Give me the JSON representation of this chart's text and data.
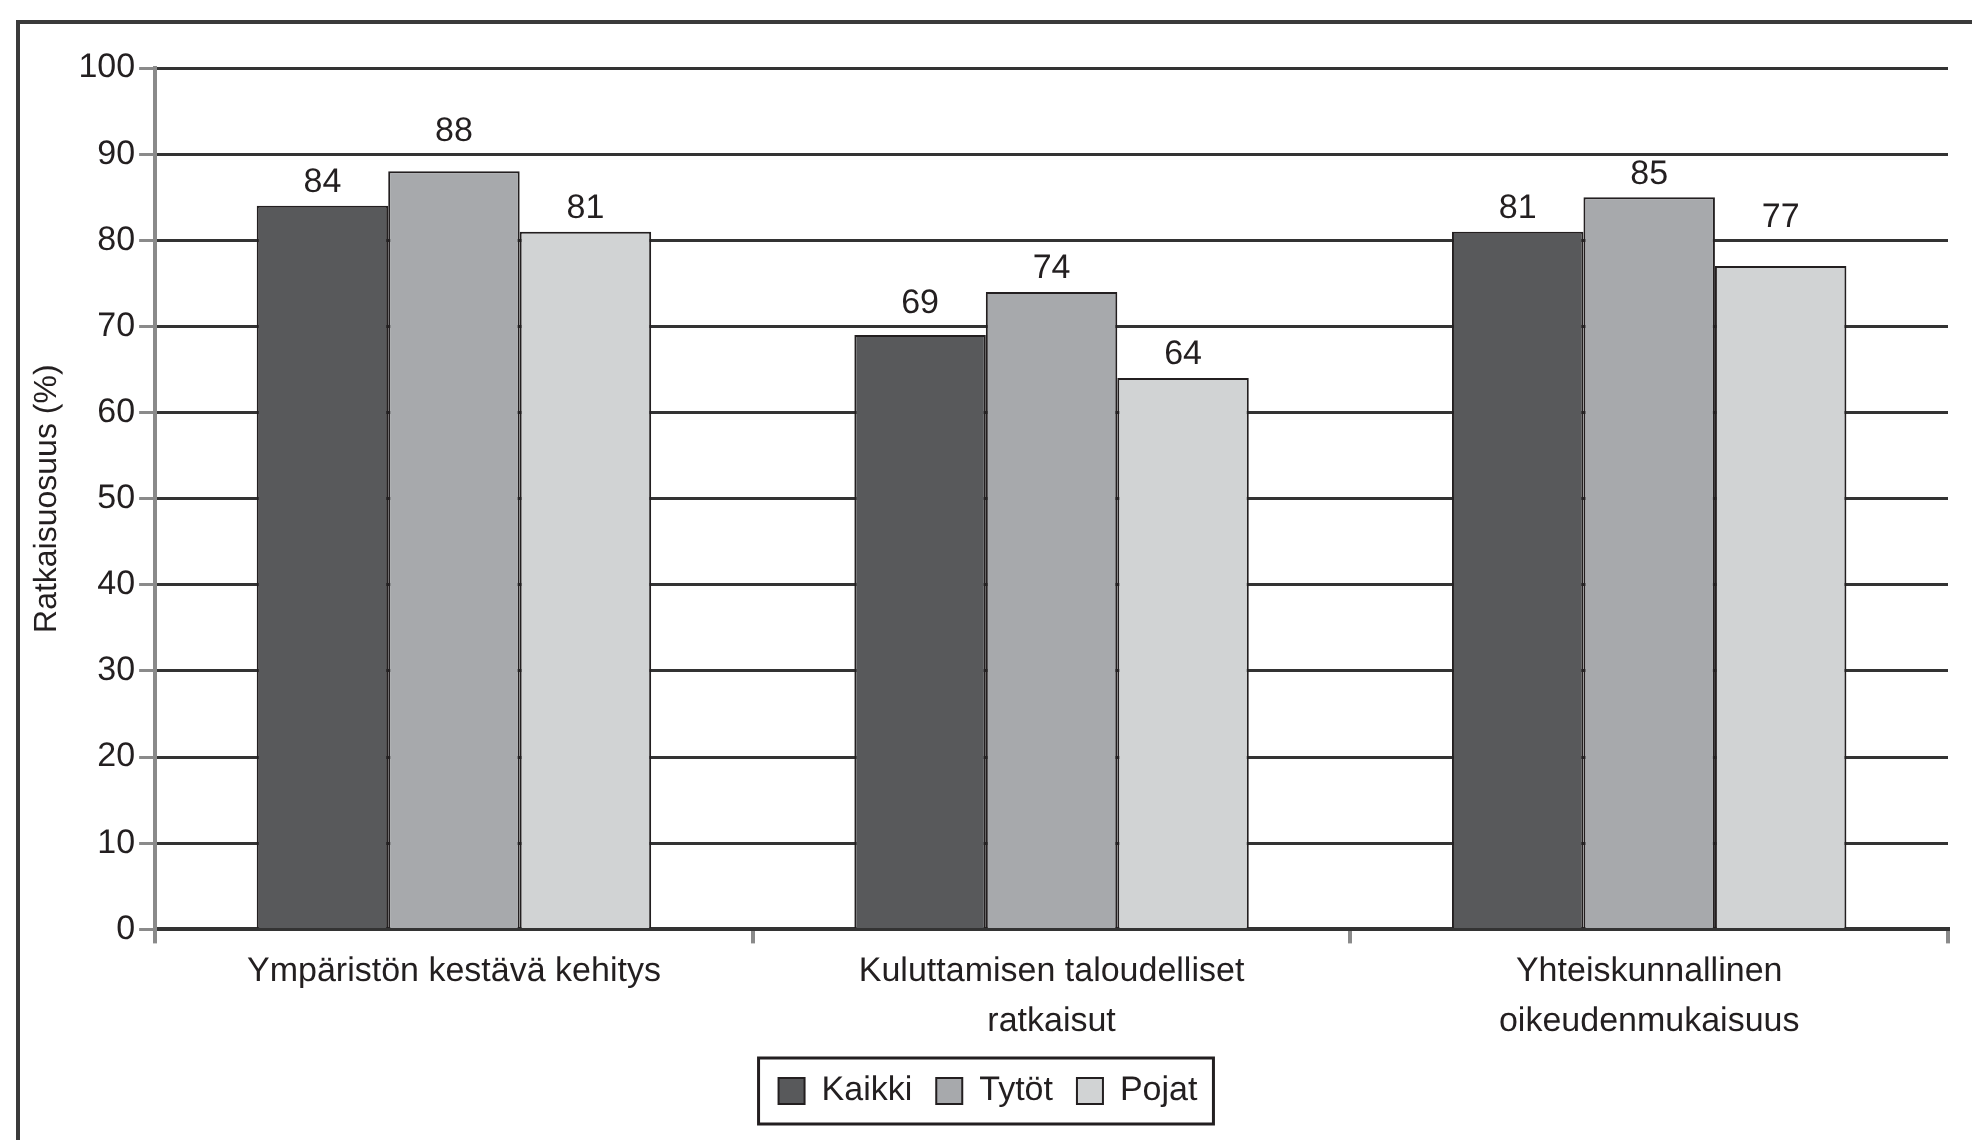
{
  "chart_data": {
    "type": "bar",
    "ylabel": "Ratkaisuosuus (%)",
    "categories": [
      "Ympäristön kestävä kehitys",
      "Kuluttamisen taloudelliset ratkaisut",
      "Yhteiskunnallinen oikeudenmukaisuus"
    ],
    "series": [
      {
        "name": "Kaikki",
        "color": "#58595b",
        "values": [
          84,
          69,
          81
        ]
      },
      {
        "name": "Tytöt",
        "color": "#a7a9ac",
        "values": [
          88,
          74,
          85
        ]
      },
      {
        "name": "Pojat",
        "color": "#d1d3d4",
        "values": [
          81,
          64,
          77
        ]
      }
    ],
    "ylim": [
      0,
      100
    ],
    "yticks": [
      0,
      10,
      20,
      30,
      40,
      50,
      60,
      70,
      80,
      90,
      100
    ],
    "grid": "y",
    "legend": "bottom",
    "data_labels": true
  }
}
